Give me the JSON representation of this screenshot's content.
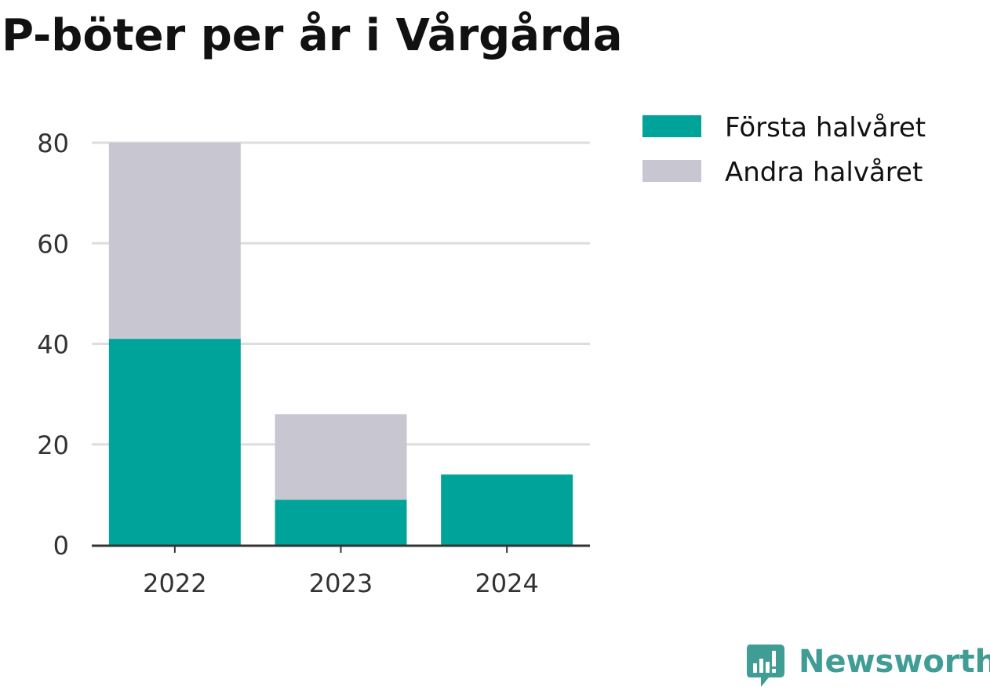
{
  "chart_data": {
    "type": "bar",
    "stacked": true,
    "title": "P-böter per år i Vårgårda",
    "xlabel": "",
    "ylabel": "",
    "categories": [
      "2022",
      "2023",
      "2024"
    ],
    "series": [
      {
        "name": "Första halvåret",
        "color": "#00a39a",
        "values": [
          41,
          9,
          14
        ]
      },
      {
        "name": "Andra halvåret",
        "color": "#c8c7d1",
        "values": [
          39,
          17,
          0
        ]
      }
    ],
    "ylim": [
      0,
      80
    ],
    "yticks": [
      0,
      20,
      40,
      60,
      80
    ],
    "grid": true,
    "legend_position": "top-right"
  },
  "branding": {
    "name": "Newsworthy",
    "color": "#3f9d95",
    "icon": "newsworthy-logo-icon"
  }
}
